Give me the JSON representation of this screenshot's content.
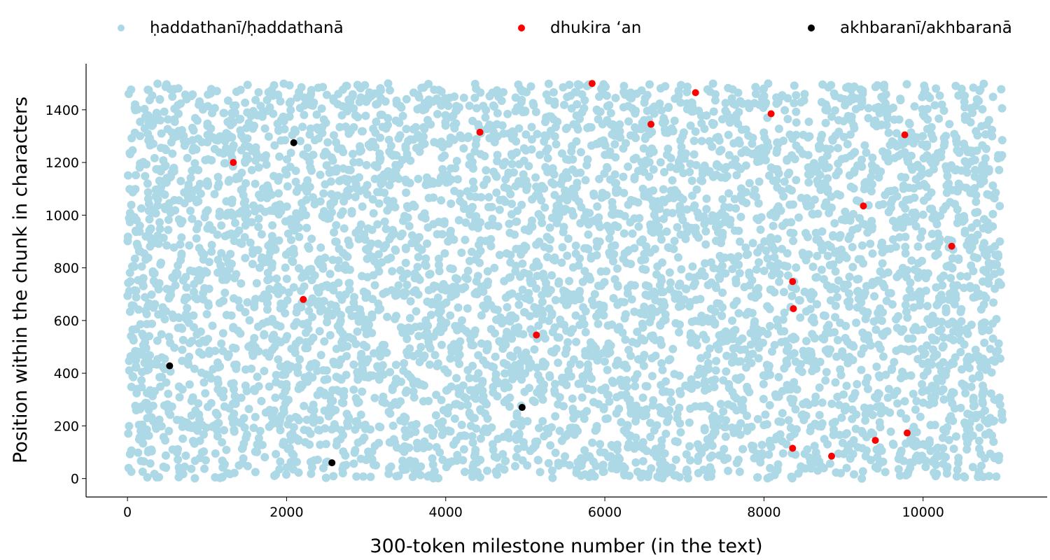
{
  "colors": {
    "haddathani": "#add8e6",
    "dhukira": "#ff0000",
    "akhbarani": "#000000"
  },
  "legend": [
    {
      "key": "haddathani",
      "label": "ḥaddathanī/ḥaddathanā"
    },
    {
      "key": "dhukira",
      "label": "dhukira ‘an"
    },
    {
      "key": "akhbarani",
      "label": "akhbaranī/akhbaranā"
    }
  ],
  "chart_data": {
    "type": "scatter",
    "title": "",
    "xlabel": "300-token milestone number (in the text)",
    "ylabel": "Position within the chunk in characters",
    "xlim": [
      -520,
      11560
    ],
    "ylim": [
      -70,
      1575
    ],
    "xticks": [
      0,
      2000,
      4000,
      6000,
      8000,
      10000
    ],
    "yticks": [
      0,
      200,
      400,
      600,
      800,
      1000,
      1200,
      1400
    ],
    "legend_position": "top",
    "grid": false,
    "series": [
      {
        "name": "ḥaddathanī/ḥaddathanā",
        "color": "#add8e6",
        "description": "dense uniform cloud covering x 0–11000, y 0–1500",
        "x_range": [
          0,
          11000
        ],
        "y_range": [
          0,
          1500
        ]
      },
      {
        "name": "dhukira ‘an",
        "color": "#ff0000",
        "points": [
          [
            1330,
            1200
          ],
          [
            2210,
            680
          ],
          [
            4430,
            1315
          ],
          [
            5140,
            545
          ],
          [
            5840,
            1500
          ],
          [
            6580,
            1345
          ],
          [
            7140,
            1465
          ],
          [
            8090,
            1385
          ],
          [
            8360,
            748
          ],
          [
            8370,
            645
          ],
          [
            8360,
            115
          ],
          [
            8850,
            85
          ],
          [
            9250,
            1035
          ],
          [
            9400,
            145
          ],
          [
            9770,
            1305
          ],
          [
            9800,
            173
          ],
          [
            10360,
            882
          ]
        ]
      },
      {
        "name": "akhbaranī/akhbaranā",
        "color": "#000000",
        "points": [
          [
            530,
            428
          ],
          [
            2090,
            1275
          ],
          [
            2570,
            60
          ],
          [
            4960,
            270
          ]
        ]
      }
    ]
  }
}
